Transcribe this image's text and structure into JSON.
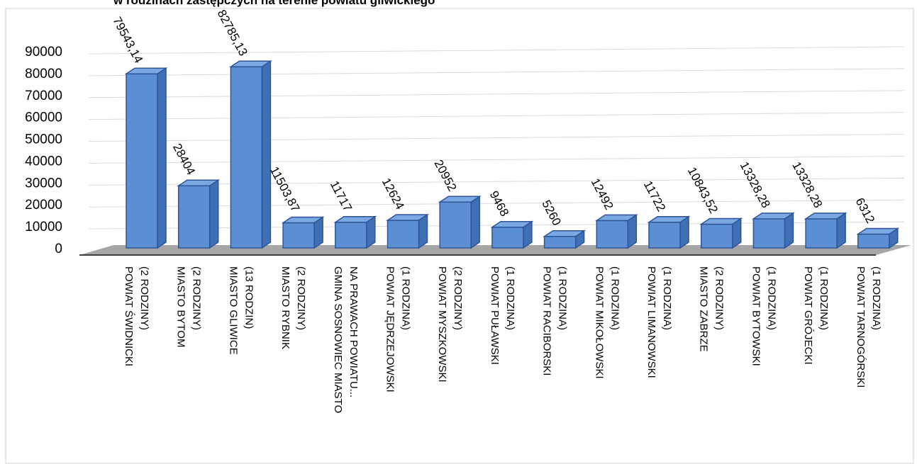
{
  "chart_data": {
    "type": "bar",
    "title": "w rodzinach zastępczych na terenie powiatu gliwickiego",
    "categories": [
      [
        "POWIAT ŚWIDNICKI",
        "(2 RODZINY)"
      ],
      [
        "MIASTO BYTOM",
        "(2 RODZINY)"
      ],
      [
        "MIASTO GLIWICE",
        "(13 RODZIN)"
      ],
      [
        "MIASTO RYBNIK",
        "(2 RODZINY)"
      ],
      [
        "GMINA SOSNOWIEC MIASTO",
        "NA PRAWACH POWIATU..."
      ],
      [
        "POWIAT JĘDRZEJOWSKI",
        "(1 RODZINA)"
      ],
      [
        "POWIAT MYSZKOWSKI",
        "(2 RODZINY)"
      ],
      [
        "POWIAT PUŁAWSKI",
        "(1 RODZINA)"
      ],
      [
        "POWIAT RACIBORSKI",
        "(1 RODZINA)"
      ],
      [
        "POWIAT MIKOŁOWSKI",
        "(1 RODZINA)"
      ],
      [
        "POWIAT LIMANOWSKI",
        "(1 RODZINA)"
      ],
      [
        "MIASTO ZABRZE",
        "(2 RODZINY)"
      ],
      [
        "POWIAT BYTOWSKI",
        "(1 RODZINA)"
      ],
      [
        "POWIAT GRÓJECKI",
        "(1 RODZINA)"
      ],
      [
        "POWIAT TARNOGÓRSKI",
        "(1 RODZINA)"
      ]
    ],
    "values": [
      79543.14,
      28404,
      82785.13,
      11503.87,
      11717,
      12624,
      20952,
      9468,
      5260,
      12492,
      11722,
      10843.52,
      13328.28,
      13328.28,
      6312
    ],
    "data_labels": [
      "79543,14",
      "28404",
      "82785,13",
      "11503,87",
      "11717",
      "12624",
      "20952",
      "9468",
      "5260",
      "12492",
      "11722",
      "10843,52",
      "13328,28",
      "13328,28",
      "6312"
    ],
    "y_ticks": [
      "0",
      "10000",
      "20000",
      "30000",
      "40000",
      "50000",
      "60000",
      "70000",
      "80000",
      "90000"
    ],
    "ylim": [
      0,
      90000
    ],
    "grid": true,
    "colors": {
      "bar_front": "#5b8fd4",
      "bar_side": "#3f6fb4",
      "bar_top": "#7aa8e3",
      "bar_edge": "#2f5597",
      "floor": "#a6a6a6",
      "axis_line": "#404040",
      "grid": "#d9d9d9",
      "text": "#000000"
    }
  }
}
